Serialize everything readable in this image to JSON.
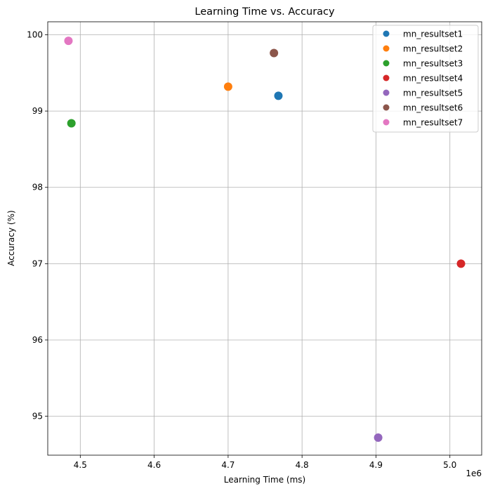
{
  "chart_data": {
    "type": "scatter",
    "title": "Learning Time vs. Accuracy",
    "xlabel": "Learning Time (ms)",
    "ylabel": "Accuracy (%)",
    "x_offset_label": "1e6",
    "xlim": [
      4.456,
      5.043
    ],
    "ylim": [
      94.49,
      100.17
    ],
    "x_ticks": [
      4.5,
      4.6,
      4.7,
      4.8,
      4.9,
      5.0
    ],
    "x_tick_labels": [
      "4.5",
      "4.6",
      "4.7",
      "4.8",
      "4.9",
      "5.0"
    ],
    "y_ticks": [
      95,
      96,
      97,
      98,
      99,
      100
    ],
    "y_tick_labels": [
      "95",
      "96",
      "97",
      "98",
      "99",
      "100"
    ],
    "grid": true,
    "legend_position": "top-right",
    "series": [
      {
        "name": "mn_resultset1",
        "color": "#1f77b4",
        "x": 4.768,
        "y": 99.2
      },
      {
        "name": "mn_resultset2",
        "color": "#ff7f0e",
        "x": 4.7,
        "y": 99.32
      },
      {
        "name": "mn_resultset3",
        "color": "#2ca02c",
        "x": 4.488,
        "y": 98.84
      },
      {
        "name": "mn_resultset4",
        "color": "#d62728",
        "x": 5.015,
        "y": 97.0
      },
      {
        "name": "mn_resultset5",
        "color": "#9467bd",
        "x": 4.903,
        "y": 94.72
      },
      {
        "name": "mn_resultset6",
        "color": "#8c564b",
        "x": 4.762,
        "y": 99.76
      },
      {
        "name": "mn_resultset7",
        "color": "#e377c2",
        "x": 4.484,
        "y": 99.92
      }
    ]
  }
}
